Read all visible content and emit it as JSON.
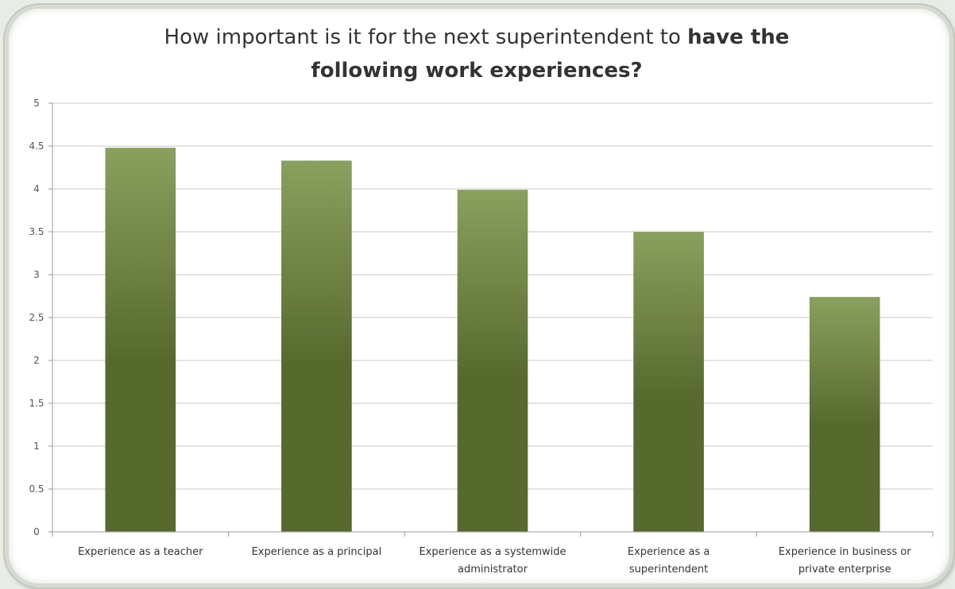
{
  "chart_data": {
    "type": "bar",
    "title_regular": "How important is it for the next superintendent to have the",
    "title_bold": "following work experiences?",
    "categories": [
      [
        "Experience as a teacher"
      ],
      [
        "Experience as a principal"
      ],
      [
        "Experience as a systemwide",
        "administrator"
      ],
      [
        "Experience as a",
        "superintendent"
      ],
      [
        "Experience in business or",
        "private enterprise"
      ]
    ],
    "values": [
      4.48,
      4.33,
      3.99,
      3.5,
      2.74
    ],
    "ylim": [
      0,
      5
    ],
    "yticks": [
      "0",
      "0.5",
      "1",
      "1.5",
      "2",
      "2.5",
      "3",
      "3.5",
      "4",
      "4.5",
      "5"
    ],
    "xlabel": "",
    "ylabel": "",
    "grid": true,
    "legend": "none",
    "bar_color_light": "#8aa05e",
    "bar_color_dark": "#566a2e"
  }
}
